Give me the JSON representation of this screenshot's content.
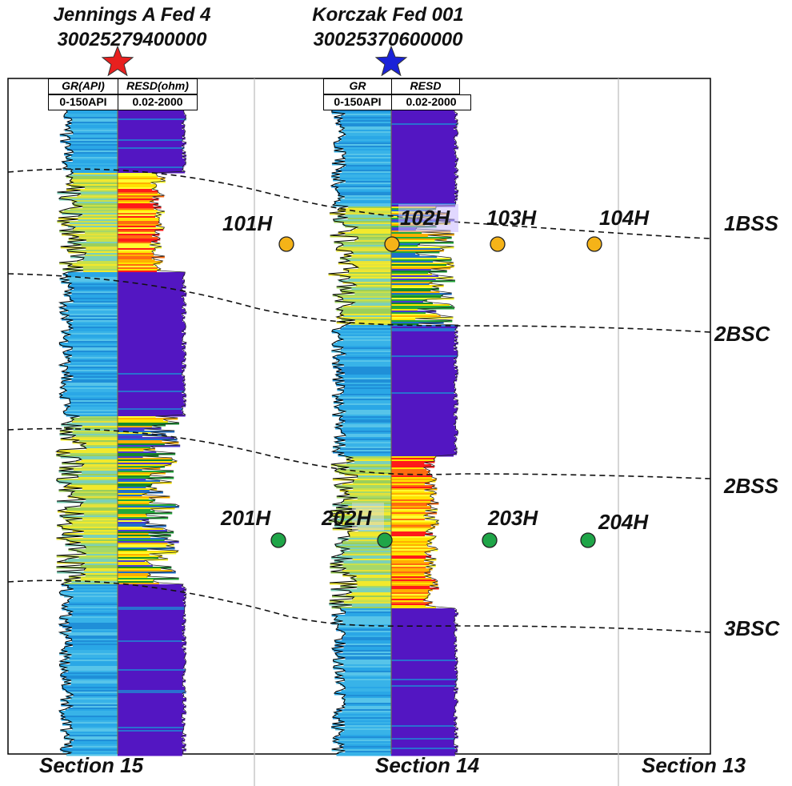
{
  "wells": [
    {
      "name": "Jennings A Fed 4",
      "api": "30025279400000",
      "star_color": "#e8201f",
      "gr_header": "GR(API)",
      "res_header": "RESD(ohm)",
      "gr_scale": "0-150API",
      "res_scale": "0.02-2000"
    },
    {
      "name": "Korczak Fed 001",
      "api": "30025370600000",
      "star_color": "#1a22d8",
      "gr_header": "GR",
      "res_header": "RESD",
      "gr_scale": "0-150API",
      "res_scale": "0.02-2000"
    }
  ],
  "zones": [
    "1BSS",
    "2BSC",
    "2BSS",
    "3BSC"
  ],
  "lateral_wells_upper": {
    "labels": [
      "101H",
      "102H",
      "103H",
      "104H"
    ],
    "color": "#f5b318"
  },
  "lateral_wells_lower": {
    "labels": [
      "201H",
      "202H",
      "203H",
      "204H"
    ],
    "color": "#1fa548"
  },
  "sections": [
    "Section 15",
    "Section 14",
    "Section 13"
  ]
}
